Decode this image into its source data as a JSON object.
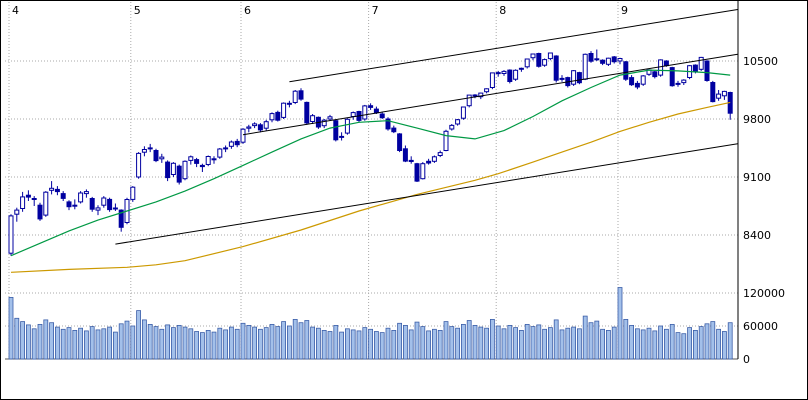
{
  "chart_data": {
    "type": "candlestick",
    "title": "",
    "subtitle": "",
    "legend": [],
    "x_axis": {
      "months": [
        {
          "label": "4",
          "start_index": 0
        },
        {
          "label": "5",
          "start_index": 21
        },
        {
          "label": "6",
          "start_index": 40
        },
        {
          "label": "7",
          "start_index": 62
        },
        {
          "label": "8",
          "start_index": 84
        },
        {
          "label": "9",
          "start_index": 105
        }
      ]
    },
    "y_axis": {
      "price_ticks": [
        10500,
        9800,
        9100,
        8400
      ],
      "volume_ticks": [
        120000,
        60000,
        0
      ]
    },
    "columns": [
      "open",
      "high",
      "low",
      "close",
      "volume"
    ],
    "candles": [
      [
        8180,
        8650,
        8150,
        8630,
        112000
      ],
      [
        8650,
        8730,
        8560,
        8700,
        74000
      ],
      [
        8720,
        8920,
        8680,
        8860,
        68000
      ],
      [
        8880,
        8940,
        8810,
        8857,
        62000
      ],
      [
        8840,
        8870,
        8750,
        8832,
        55000
      ],
      [
        8760,
        8790,
        8570,
        8595,
        63000
      ],
      [
        8640,
        8930,
        8620,
        8916,
        71000
      ],
      [
        8940,
        9050,
        8890,
        8964,
        66000
      ],
      [
        8950,
        8990,
        8880,
        8924,
        58000
      ],
      [
        8900,
        8930,
        8810,
        8842,
        54000
      ],
      [
        8800,
        8820,
        8700,
        8742,
        57000
      ],
      [
        8760,
        8830,
        8710,
        8755,
        52000
      ],
      [
        8800,
        8930,
        8780,
        8907,
        56000
      ],
      [
        8900,
        8950,
        8850,
        8924,
        51000
      ],
      [
        8840,
        8860,
        8680,
        8711,
        59000
      ],
      [
        8700,
        8760,
        8640,
        8727,
        53000
      ],
      [
        8760,
        8870,
        8730,
        8847,
        55000
      ],
      [
        8830,
        8850,
        8680,
        8707,
        58000
      ],
      [
        8720,
        8780,
        8690,
        8726,
        49000
      ],
      [
        8700,
        8710,
        8440,
        8493,
        64000
      ],
      [
        8550,
        8850,
        8530,
        8828,
        69000
      ],
      [
        8830,
        8990,
        8800,
        8977,
        60000
      ],
      [
        9100,
        9400,
        9080,
        9385,
        88000
      ],
      [
        9400,
        9470,
        9350,
        9432,
        71000
      ],
      [
        9440,
        9500,
        9400,
        9451,
        63000
      ],
      [
        9420,
        9440,
        9280,
        9298,
        59000
      ],
      [
        9320,
        9380,
        9270,
        9340,
        54000
      ],
      [
        9280,
        9300,
        9050,
        9093,
        62000
      ],
      [
        9130,
        9280,
        9100,
        9265,
        57000
      ],
      [
        9230,
        9250,
        9010,
        9038,
        61000
      ],
      [
        9080,
        9300,
        9060,
        9290,
        58000
      ],
      [
        9300,
        9360,
        9250,
        9344,
        55000
      ],
      [
        9310,
        9330,
        9220,
        9264,
        50000
      ],
      [
        9240,
        9260,
        9160,
        9225,
        48000
      ],
      [
        9250,
        9360,
        9230,
        9347,
        52000
      ],
      [
        9320,
        9350,
        9260,
        9310,
        49000
      ],
      [
        9340,
        9450,
        9320,
        9438,
        56000
      ],
      [
        9450,
        9480,
        9400,
        9451,
        53000
      ],
      [
        9470,
        9540,
        9440,
        9522,
        58000
      ],
      [
        9530,
        9560,
        9460,
        9490,
        54000
      ],
      [
        9520,
        9690,
        9500,
        9677,
        65000
      ],
      [
        9690,
        9730,
        9640,
        9704,
        61000
      ],
      [
        9720,
        9760,
        9690,
        9741,
        58000
      ],
      [
        9730,
        9750,
        9640,
        9669,
        54000
      ],
      [
        9690,
        9790,
        9660,
        9768,
        57000
      ],
      [
        9790,
        9880,
        9760,
        9865,
        63000
      ],
      [
        9880,
        9900,
        9770,
        9786,
        59000
      ],
      [
        9820,
        10000,
        9800,
        9991,
        68000
      ],
      [
        9990,
        10020,
        9940,
        9981,
        60000
      ],
      [
        10000,
        10150,
        9980,
        10136,
        72000
      ],
      [
        10140,
        10170,
        10020,
        10040,
        66000
      ],
      [
        10000,
        10010,
        9730,
        9752,
        70000
      ],
      [
        9770,
        9860,
        9740,
        9840,
        58000
      ],
      [
        9820,
        9830,
        9680,
        9703,
        56000
      ],
      [
        9720,
        9800,
        9690,
        9786,
        52000
      ],
      [
        9800,
        9850,
        9780,
        9826,
        50000
      ],
      [
        9780,
        9790,
        9530,
        9549,
        61000
      ],
      [
        9580,
        9640,
        9540,
        9590,
        49000
      ],
      [
        9630,
        9810,
        9610,
        9796,
        55000
      ],
      [
        9830,
        9890,
        9790,
        9877,
        53000
      ],
      [
        9890,
        9900,
        9760,
        9783,
        51000
      ],
      [
        9800,
        9970,
        9780,
        9958,
        57000
      ],
      [
        9960,
        9990,
        9910,
        9939,
        54000
      ],
      [
        9920,
        9950,
        9860,
        9876,
        50000
      ],
      [
        9860,
        9890,
        9800,
        9816,
        48000
      ],
      [
        9800,
        9820,
        9660,
        9680,
        56000
      ],
      [
        9690,
        9720,
        9630,
        9647,
        52000
      ],
      [
        9620,
        9630,
        9400,
        9420,
        65000
      ],
      [
        9440,
        9480,
        9280,
        9291,
        61000
      ],
      [
        9300,
        9350,
        9260,
        9287,
        53000
      ],
      [
        9260,
        9270,
        9040,
        9050,
        67000
      ],
      [
        9080,
        9280,
        9070,
        9261,
        59000
      ],
      [
        9290,
        9320,
        9250,
        9270,
        51000
      ],
      [
        9290,
        9360,
        9270,
        9344,
        54000
      ],
      [
        9360,
        9420,
        9340,
        9395,
        52000
      ],
      [
        9420,
        9670,
        9410,
        9652,
        68000
      ],
      [
        9680,
        9740,
        9660,
        9723,
        59000
      ],
      [
        9740,
        9800,
        9720,
        9792,
        56000
      ],
      [
        9810,
        9950,
        9790,
        9945,
        63000
      ],
      [
        9960,
        10090,
        9940,
        10088,
        70000
      ],
      [
        10090,
        10100,
        10050,
        10087,
        61000
      ],
      [
        10070,
        10120,
        10040,
        10113,
        58000
      ],
      [
        10130,
        10170,
        10110,
        10165,
        56000
      ],
      [
        10180,
        10360,
        10160,
        10356,
        72000
      ],
      [
        10360,
        10380,
        10310,
        10352,
        60000
      ],
      [
        10350,
        10390,
        10320,
        10375,
        55000
      ],
      [
        10390,
        10400,
        10230,
        10252,
        61000
      ],
      [
        10280,
        10400,
        10260,
        10388,
        57000
      ],
      [
        10400,
        10420,
        10370,
        10412,
        52000
      ],
      [
        10430,
        10530,
        10410,
        10524,
        63000
      ],
      [
        10540,
        10590,
        10510,
        10585,
        59000
      ],
      [
        10590,
        10600,
        10420,
        10435,
        62000
      ],
      [
        10450,
        10530,
        10430,
        10517,
        54000
      ],
      [
        10530,
        10600,
        10510,
        10597,
        57000
      ],
      [
        10560,
        10570,
        10240,
        10268,
        71000
      ],
      [
        10290,
        10330,
        10250,
        10284,
        53000
      ],
      [
        10300,
        10310,
        10180,
        10204,
        56000
      ],
      [
        10220,
        10390,
        10200,
        10383,
        58000
      ],
      [
        10360,
        10370,
        10220,
        10238,
        55000
      ],
      [
        10280,
        10590,
        10270,
        10581,
        78000
      ],
      [
        10590,
        10620,
        10480,
        10497,
        66000
      ],
      [
        10520,
        10639,
        10500,
        10527,
        69000
      ],
      [
        10510,
        10520,
        10450,
        10473,
        54000
      ],
      [
        10460,
        10540,
        10440,
        10534,
        52000
      ],
      [
        10550,
        10560,
        10470,
        10492,
        58000
      ],
      [
        10500,
        10540,
        10460,
        10530,
        130000
      ],
      [
        10490,
        10500,
        10260,
        10280,
        72000
      ],
      [
        10300,
        10330,
        10200,
        10214,
        61000
      ],
      [
        10230,
        10260,
        10160,
        10187,
        55000
      ],
      [
        10220,
        10330,
        10200,
        10320,
        53000
      ],
      [
        10340,
        10400,
        10320,
        10393,
        56000
      ],
      [
        10370,
        10380,
        10290,
        10312,
        51000
      ],
      [
        10330,
        10520,
        10310,
        10513,
        60000
      ],
      [
        10500,
        10510,
        10430,
        10444,
        54000
      ],
      [
        10420,
        10430,
        10190,
        10202,
        63000
      ],
      [
        10230,
        10260,
        10190,
        10218,
        48000
      ],
      [
        10240,
        10280,
        10210,
        10270,
        46000
      ],
      [
        10300,
        10450,
        10280,
        10443,
        57000
      ],
      [
        10450,
        10460,
        10350,
        10370,
        52000
      ],
      [
        10400,
        10550,
        10380,
        10544,
        59000
      ],
      [
        10500,
        10510,
        10250,
        10265,
        64000
      ],
      [
        10240,
        10260,
        10000,
        10009,
        68000
      ],
      [
        10050,
        10150,
        10020,
        10100,
        54000
      ],
      [
        10080,
        10140,
        10030,
        10133,
        50000
      ],
      [
        10120,
        10130,
        9790,
        9870,
        66000
      ]
    ],
    "ma_short": {
      "name": "short-term moving average",
      "points": [
        [
          0,
          8150
        ],
        [
          5,
          8300
        ],
        [
          10,
          8450
        ],
        [
          15,
          8580
        ],
        [
          20,
          8690
        ],
        [
          25,
          8800
        ],
        [
          30,
          8930
        ],
        [
          35,
          9080
        ],
        [
          40,
          9240
        ],
        [
          45,
          9400
        ],
        [
          50,
          9560
        ],
        [
          55,
          9690
        ],
        [
          60,
          9760
        ],
        [
          65,
          9780
        ],
        [
          70,
          9690
        ],
        [
          75,
          9600
        ],
        [
          80,
          9560
        ],
        [
          85,
          9660
        ],
        [
          90,
          9830
        ],
        [
          95,
          10020
        ],
        [
          100,
          10180
        ],
        [
          105,
          10330
        ],
        [
          110,
          10390
        ],
        [
          115,
          10380
        ],
        [
          120,
          10360
        ],
        [
          124,
          10330
        ]
      ]
    },
    "ma_long": {
      "name": "long-term moving average",
      "points": [
        [
          0,
          7950
        ],
        [
          10,
          7985
        ],
        [
          20,
          8010
        ],
        [
          25,
          8040
        ],
        [
          30,
          8090
        ],
        [
          40,
          8260
        ],
        [
          50,
          8460
        ],
        [
          60,
          8690
        ],
        [
          70,
          8890
        ],
        [
          80,
          9060
        ],
        [
          84,
          9140
        ],
        [
          90,
          9280
        ],
        [
          95,
          9400
        ],
        [
          100,
          9520
        ],
        [
          105,
          9650
        ],
        [
          110,
          9760
        ],
        [
          115,
          9860
        ],
        [
          120,
          9940
        ],
        [
          124,
          10000
        ]
      ]
    },
    "trendlines": [
      {
        "i1": 18,
        "p1": 8290,
        "i2": 125.3,
        "p2": 9502
      },
      {
        "i1": 40,
        "p1": 9610,
        "i2": 125.3,
        "p2": 10582
      },
      {
        "i1": 48,
        "p1": 10250,
        "i2": 125.3,
        "p2": 11122
      }
    ],
    "colors": {
      "candle": "#0000a0",
      "candle_up_fill": "#ffffff",
      "volume_fill": "#a3c0ea",
      "volume_stroke": "#3b5ea8",
      "ma_short": "#009944",
      "ma_long": "#cc9900",
      "trendline": "#000000",
      "grid": "#aaaaaa",
      "axis_text": "#000000",
      "plot_border": "#000000",
      "baseline": "#555555"
    }
  }
}
